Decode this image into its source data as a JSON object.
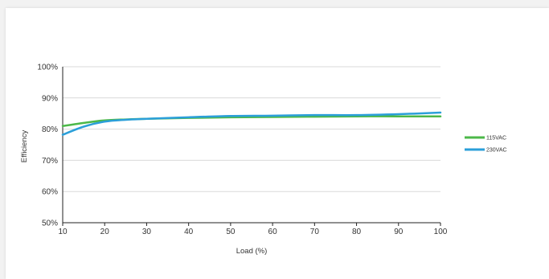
{
  "chart_data": {
    "type": "line",
    "title": "",
    "xlabel": "Load (%)",
    "ylabel": "Efficiency",
    "xlim": [
      10,
      100
    ],
    "ylim": [
      50,
      100
    ],
    "x_ticks": [
      10,
      20,
      30,
      40,
      50,
      60,
      70,
      80,
      90,
      100
    ],
    "y_ticks": [
      "50%",
      "60%",
      "70%",
      "80%",
      "90%",
      "100%"
    ],
    "grid": "horizontal",
    "legend_position": "right",
    "x": [
      10,
      15,
      20,
      25,
      30,
      40,
      50,
      60,
      70,
      80,
      90,
      100
    ],
    "series": [
      {
        "name": "115VAC",
        "color": "#4cb849",
        "values": [
          81.0,
          82.0,
          82.8,
          83.1,
          83.3,
          83.6,
          83.8,
          83.9,
          84.0,
          84.1,
          84.1,
          84.1
        ]
      },
      {
        "name": "230VAC",
        "color": "#2b9fd9",
        "values": [
          78.2,
          80.8,
          82.4,
          83.0,
          83.3,
          83.8,
          84.2,
          84.3,
          84.5,
          84.5,
          84.8,
          85.3
        ]
      }
    ]
  }
}
